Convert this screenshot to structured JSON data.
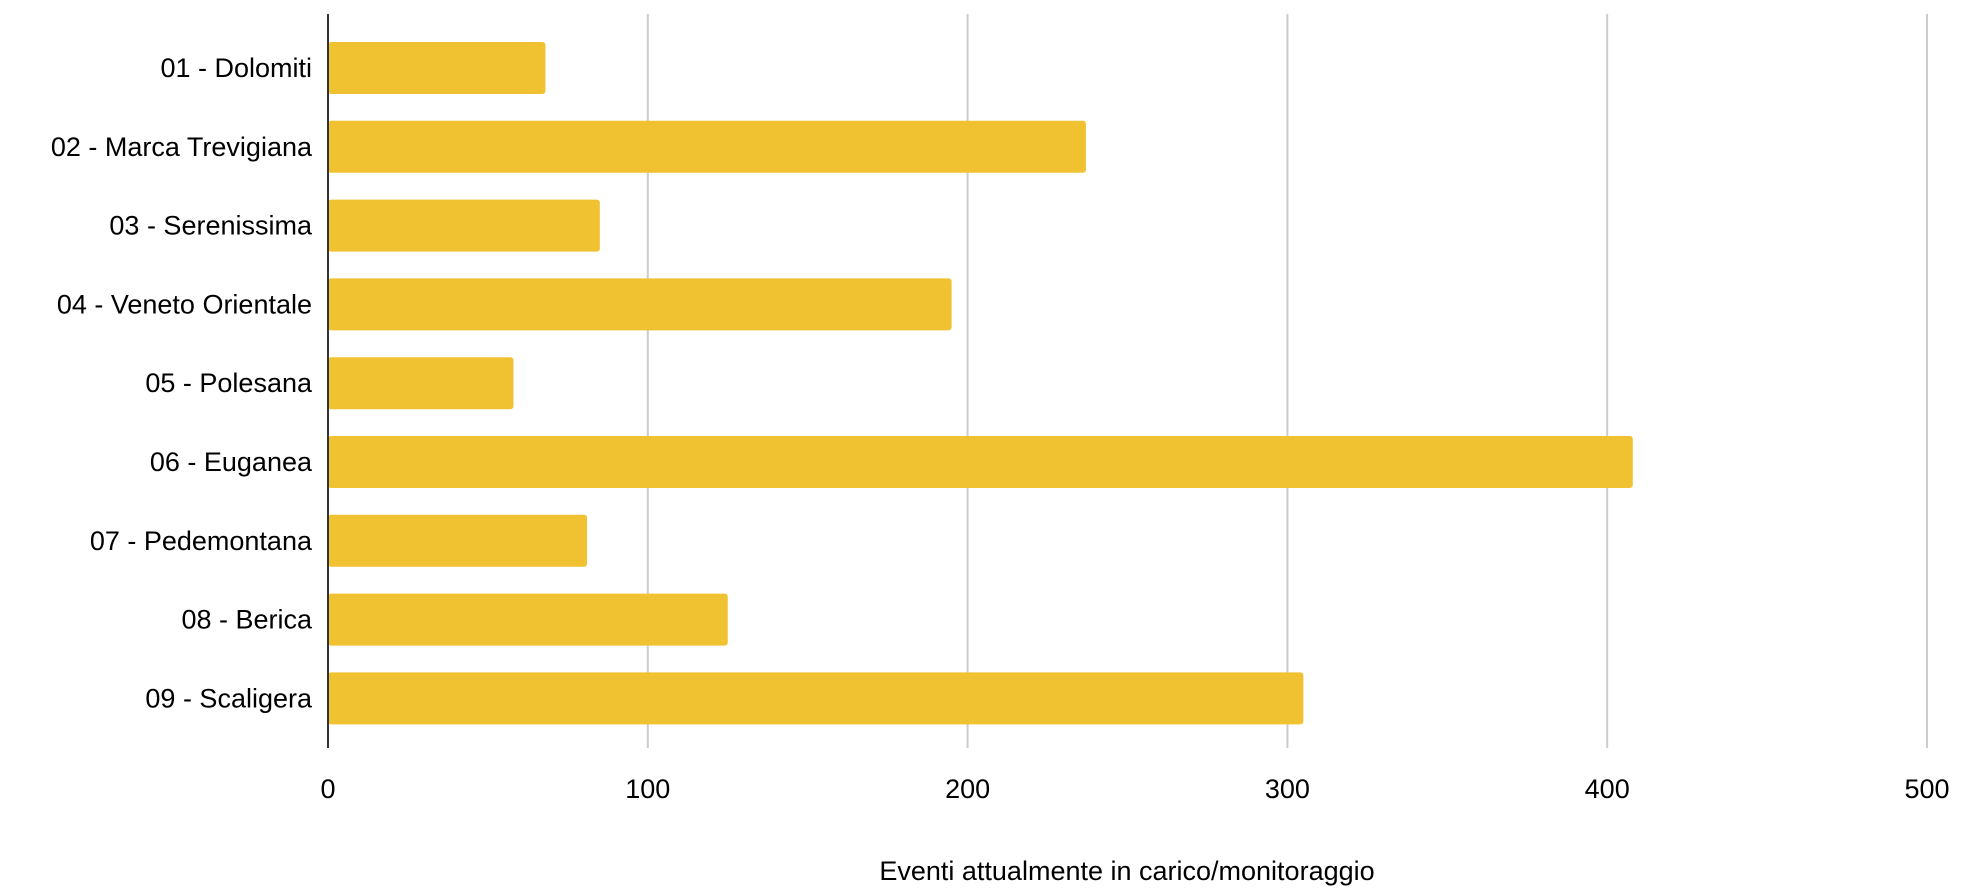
{
  "chart_data": {
    "type": "bar",
    "orientation": "horizontal",
    "title": "",
    "xlabel": "Eventi attualmente in carico/monitoraggio",
    "ylabel": "",
    "categories": [
      "01 - Dolomiti",
      "02 - Marca Trevigiana",
      "03 - Serenissima",
      "04 - Veneto Orientale",
      "05 - Polesana",
      "06 - Euganea",
      "07 - Pedemontana",
      "08 - Berica",
      "09 - Scaligera"
    ],
    "values": [
      68,
      237,
      85,
      195,
      58,
      408,
      81,
      125,
      305
    ],
    "xlim": [
      0,
      500
    ],
    "xticks": [
      0,
      100,
      200,
      300,
      400,
      500
    ],
    "xtick_labels": [
      "0",
      "100",
      "200",
      "300",
      "400",
      "500"
    ],
    "grid": true,
    "legend": "none",
    "colors": {
      "bar": "#f0c232",
      "grid": "#cccccc",
      "axis": "#333333"
    }
  }
}
